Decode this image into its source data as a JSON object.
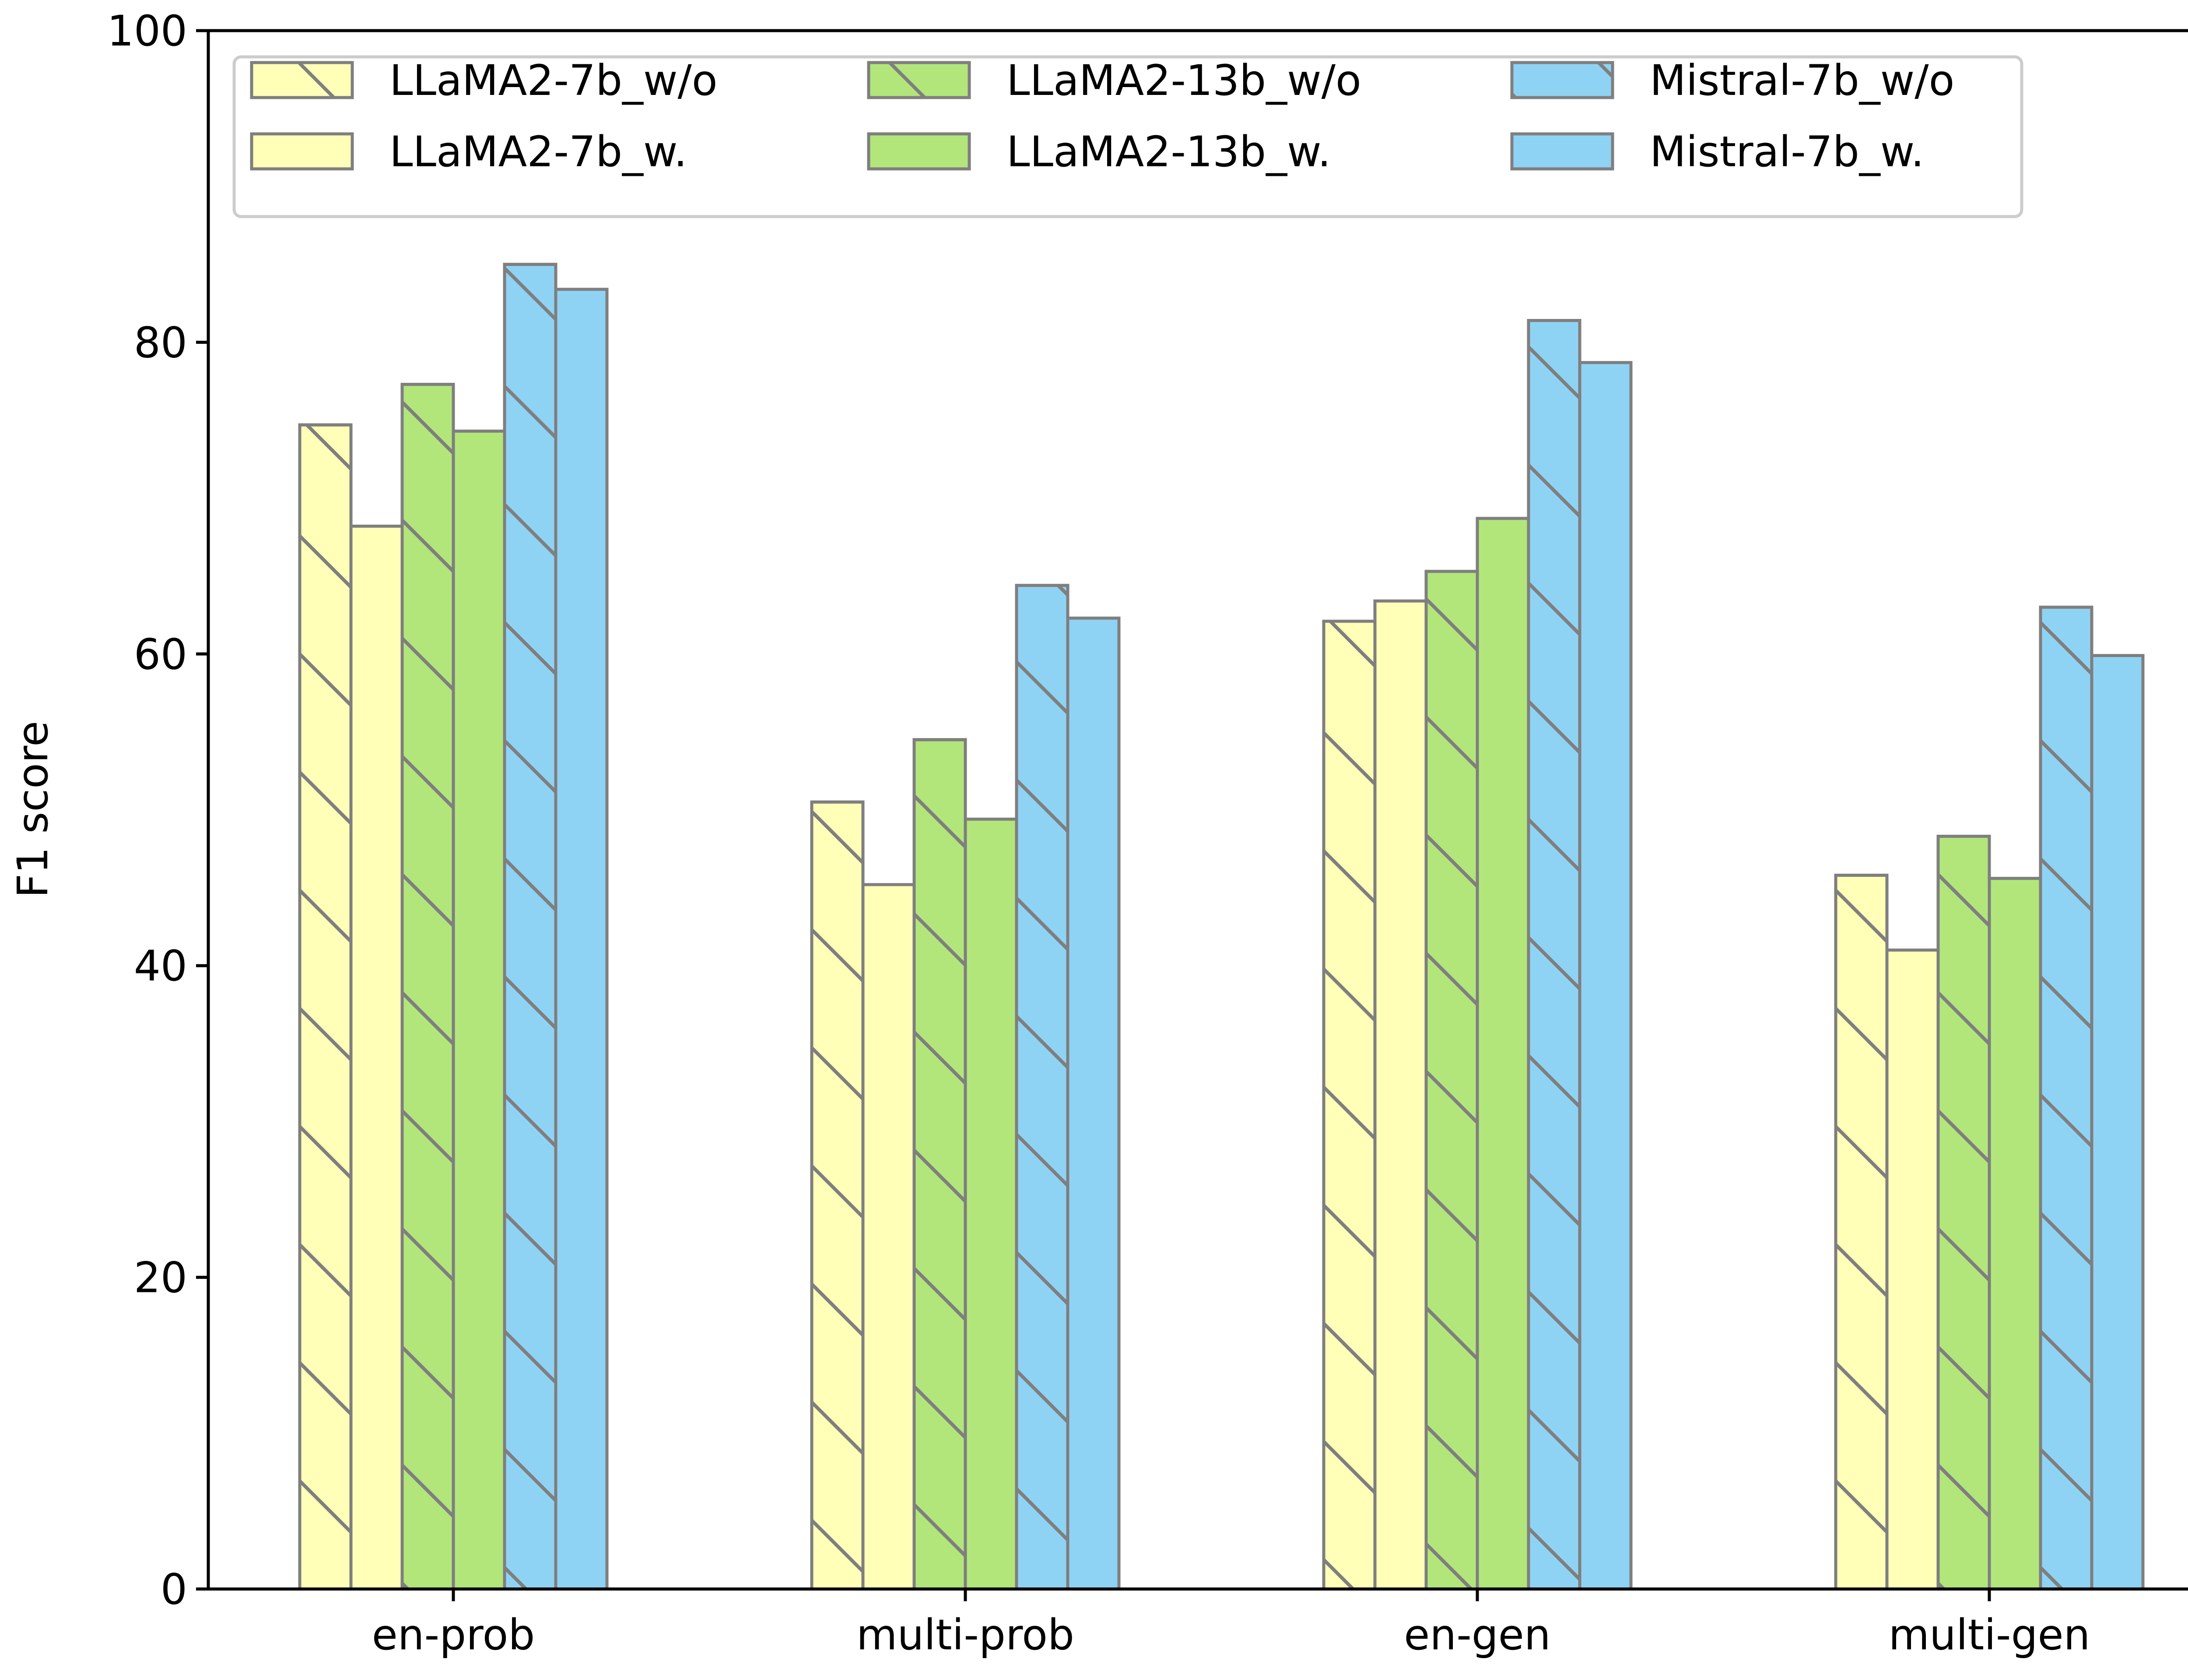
{
  "chart_data": {
    "type": "bar",
    "title": "",
    "xlabel": "",
    "ylabel": "F1 score",
    "ylim": [
      0,
      100
    ],
    "yticks": [
      0,
      20,
      40,
      60,
      80,
      100
    ],
    "grid": false,
    "legend_position": "top",
    "categories": [
      "en-prob",
      "multi-prob",
      "en-gen",
      "multi-gen"
    ],
    "series": [
      {
        "name": "LLaMA2-7b_w/o",
        "values": [
          74.7,
          50.5,
          62.1,
          45.8
        ],
        "color": "#ffffb8",
        "hatch": "diagonal"
      },
      {
        "name": "LLaMA2-7b_w.",
        "values": [
          68.2,
          45.2,
          63.4,
          41.0
        ],
        "color": "#ffffb8",
        "hatch": "none"
      },
      {
        "name": "LLaMA2-13b_w/o",
        "values": [
          77.3,
          54.5,
          65.3,
          48.3
        ],
        "color": "#b2e67a",
        "hatch": "diagonal"
      },
      {
        "name": "LLaMA2-13b_w.",
        "values": [
          74.3,
          49.4,
          68.7,
          45.6
        ],
        "color": "#b2e67a",
        "hatch": "none"
      },
      {
        "name": "Mistral-7b_w/o",
        "values": [
          85.0,
          64.4,
          81.4,
          63.0
        ],
        "color": "#8fd3f4",
        "hatch": "diagonal"
      },
      {
        "name": "Mistral-7b_w.",
        "values": [
          83.4,
          62.3,
          78.7,
          59.9
        ],
        "color": "#8fd3f4",
        "hatch": "none"
      }
    ]
  }
}
